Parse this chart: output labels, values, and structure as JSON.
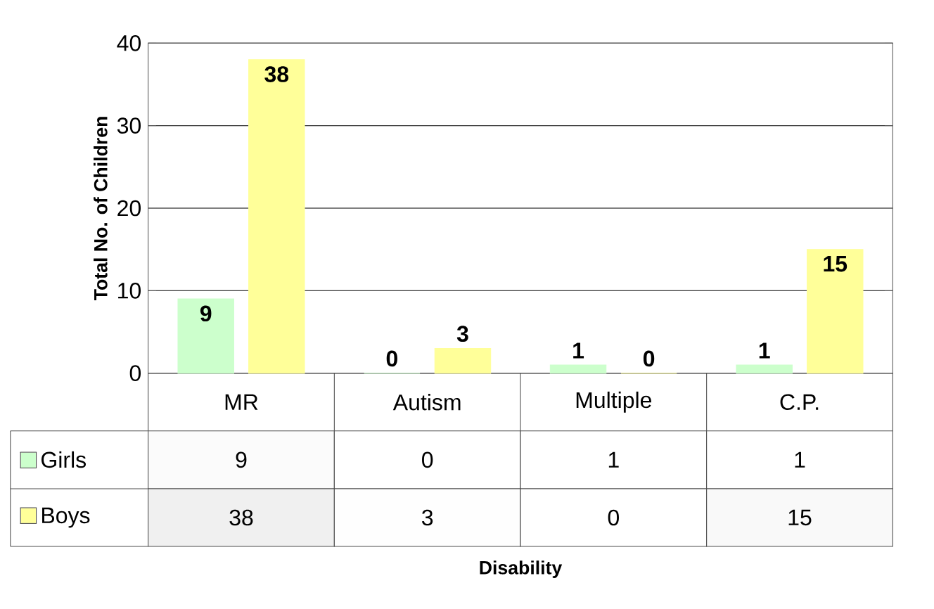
{
  "chart_data": [
    {
      "type": "bar",
      "ylabel": "Total No. of Children",
      "categories": [
        null,
        null,
        null,
        null
      ],
      "series": [
        {
          "name": "Girls",
          "color": "#ccffcc",
          "values": [
            9,
            0,
            1,
            1
          ],
          "value_labels": [
            "9",
            "0",
            "1",
            "1"
          ]
        },
        {
          "name": "Boys",
          "color": "#ffff99",
          "values": [
            38,
            3,
            0,
            15
          ],
          "value_labels": [
            "38",
            "3",
            "0",
            "15"
          ]
        }
      ],
      "ylim": [
        0,
        40
      ],
      "yticks": [
        0,
        10,
        20,
        30,
        40
      ],
      "grid": "y",
      "legend": "bottom left"
    },
    {
      "type": "heatmap",
      "xlabel": "Disability",
      "categories": [
        "MR",
        "Autism",
        "Multiple",
        "C.P."
      ],
      "y_categories": [
        null,
        null
      ],
      "cells": [
        [
          9,
          0,
          1,
          1
        ],
        [
          38,
          3,
          0,
          15
        ]
      ],
      "cell_labels": [
        [
          "9",
          "0",
          "1",
          "1"
        ],
        [
          "38",
          "3",
          "0",
          "15"
        ]
      ]
    }
  ]
}
